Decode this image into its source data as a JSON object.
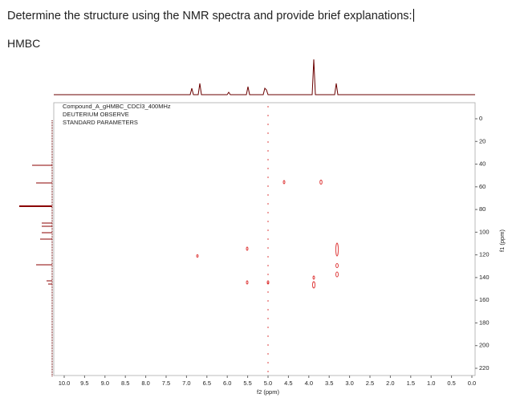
{
  "header": {
    "question": "Determine the structure using the NMR spectra and provide brief explanations:"
  },
  "section": {
    "label": "HMBC"
  },
  "figure": {
    "legend": [
      "Compound_A_gHMBC_CDCl3_400MHz",
      "DEUTERIUM OBSERVE",
      "STANDARD PARAMETERS"
    ],
    "x_ticks": [
      "10.0",
      "9.5",
      "9.0",
      "8.5",
      "8.0",
      "7.5",
      "7.0",
      "6.5",
      "6.0",
      "5.5",
      "5.0",
      "4.5",
      "4.0",
      "3.5",
      "3.0",
      "2.5",
      "2.0",
      "1.5",
      "1.0",
      "0.5",
      "0.0"
    ],
    "x_label": "f2 (ppm)",
    "y_ticks": [
      "0",
      "20",
      "40",
      "60",
      "80",
      "100",
      "120",
      "140",
      "160",
      "180",
      "200",
      "220"
    ],
    "y_label": "f1 (ppm)"
  }
}
